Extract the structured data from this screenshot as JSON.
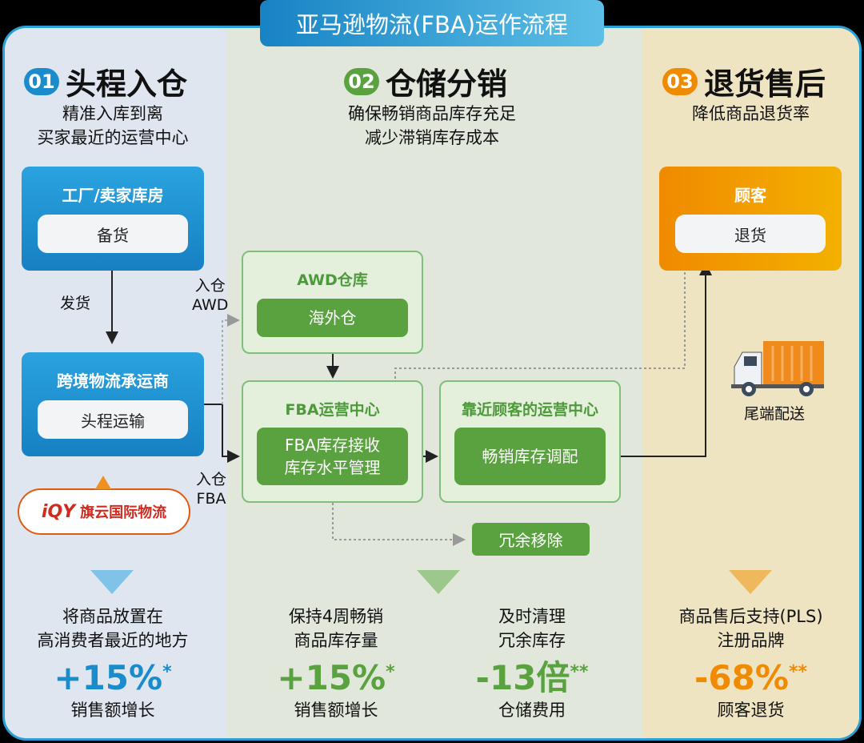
{
  "title": "亚马逊物流(FBA)运作流程",
  "colors": {
    "blue": "#1a8ccc",
    "green": "#5aa23f",
    "orange": "#f08a00"
  },
  "sections": [
    {
      "num": "01",
      "title": "头程入仓",
      "sub1": "精准入库到离",
      "sub2": "买家最近的运营中心"
    },
    {
      "num": "02",
      "title": "仓储分销",
      "sub1": "确保畅销商品库存充足",
      "sub2": "减少滞销库存成本"
    },
    {
      "num": "03",
      "title": "退货售后",
      "sub1": "降低商品退货率"
    }
  ],
  "nodes": {
    "factory": {
      "title": "工厂/卖家库房",
      "action": "备货"
    },
    "ship_label": "发货",
    "carrier": {
      "title": "跨境物流承运商",
      "action": "头程运输"
    },
    "logo": {
      "mark": "iQY",
      "text": "旗云国际物流"
    },
    "awd": {
      "title": "AWD仓库",
      "action": "海外仓"
    },
    "to_awd": [
      "入仓",
      "AWD"
    ],
    "to_fba": [
      "入仓",
      "FBA"
    ],
    "fba": {
      "title": "FBA运营中心",
      "line1": "FBA库存接收",
      "line2": "库存水平管理"
    },
    "near": {
      "title": "靠近顾客的运营中心",
      "action": "畅销库存调配"
    },
    "removal": "冗余移除",
    "customer": {
      "title": "顾客",
      "action": "退货"
    },
    "last_mile": "尾端配送",
    "truck_icon": "delivery-truck-icon"
  },
  "stats": [
    {
      "l1": "将商品放置在",
      "l2": "高消费者最近的地方",
      "value": "+15%",
      "mark": "*",
      "caption": "销售额增长"
    },
    {
      "l1": "保持4周畅销",
      "l2": "商品库存量",
      "value": "+15%",
      "mark": "*",
      "caption": "销售额增长"
    },
    {
      "l1": "及时清理",
      "l2": "冗余库存",
      "value": "-13倍",
      "mark": "**",
      "caption": "仓储费用"
    },
    {
      "l1": "商品售后支持(PLS)",
      "l2": "注册品牌",
      "value": "-68%",
      "mark": "**",
      "caption": "顾客退货"
    }
  ]
}
